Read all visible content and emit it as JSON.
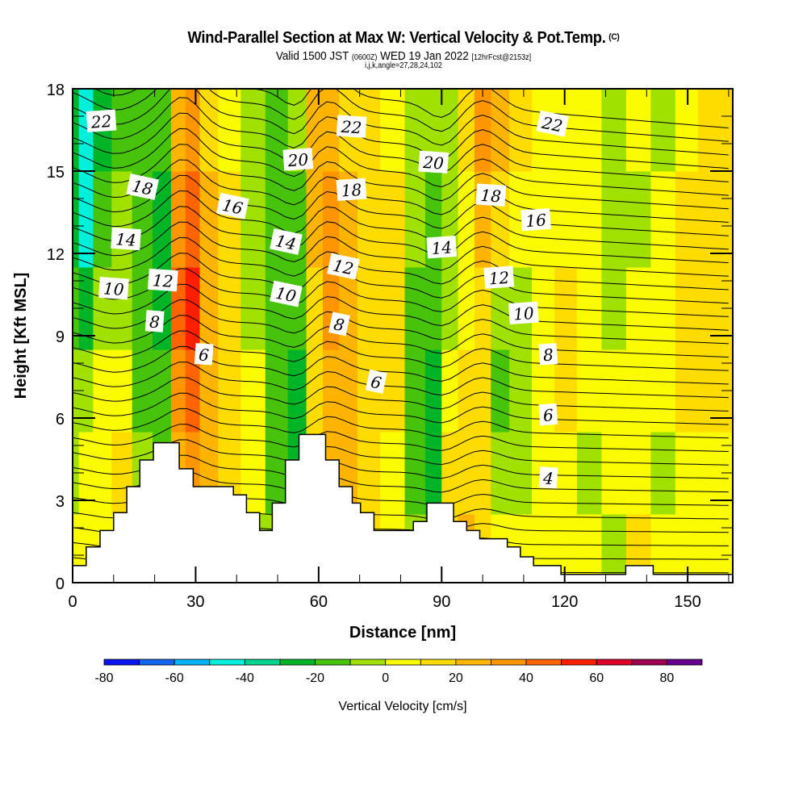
{
  "header": {
    "title": "Wind-Parallel Section at Max W: Vertical Velocity & Pot.Temp.",
    "copyright": "(C)",
    "valid_prefix": "Valid 1500 JST",
    "valid_utc": "(0600Z)",
    "valid_suffix": "WED 19 Jan 2022",
    "forecast": "[12hrFcst@2153z]",
    "indices": "i,j,k,angle=27,28,24,102"
  },
  "chart_data": {
    "type": "heatmap",
    "title": "Wind-Parallel Section at Max W: Vertical Velocity & Pot.Temp.",
    "xlabel": "Distance [nm]",
    "ylabel": "Height [Kft MSL]",
    "xlim": [
      0,
      161
    ],
    "ylim": [
      0,
      18
    ],
    "xticks": [
      "0",
      "30",
      "60",
      "90",
      "120",
      "150"
    ],
    "xtick_values": [
      0,
      30,
      60,
      90,
      120,
      150
    ],
    "yticks": [
      "0",
      "3",
      "6",
      "9",
      "12",
      "15",
      "18"
    ],
    "ytick_values": [
      0,
      3,
      6,
      9,
      12,
      15,
      18
    ],
    "colorbar": {
      "label": "Vertical Velocity [cm/s]",
      "bounds": [
        -80,
        -70,
        -60,
        -50,
        -40,
        -30,
        -20,
        -10,
        0,
        10,
        20,
        30,
        40,
        50,
        60,
        70,
        80,
        90
      ],
      "tick_labels": [
        "-80",
        "-60",
        "-40",
        "-20",
        "0",
        "20",
        "40",
        "60",
        "80"
      ],
      "tick_values": [
        -80,
        -60,
        -40,
        -20,
        0,
        20,
        40,
        60,
        80
      ],
      "colors": [
        "#0a14f0",
        "#1464f0",
        "#00b4f8",
        "#00f0dc",
        "#00d48c",
        "#00b428",
        "#46c30a",
        "#a0e100",
        "#fafa00",
        "#ffdc00",
        "#ffb400",
        "#ff9600",
        "#ff6400",
        "#ff1e00",
        "#dc0028",
        "#a00050",
        "#64008c"
      ]
    },
    "velocity_columns": [
      {
        "x": 0,
        "w": [
          0,
          -10,
          -10,
          -20,
          -30,
          -30
        ]
      },
      {
        "x": 3,
        "w": [
          0,
          0,
          -10,
          -30,
          -50,
          -50
        ]
      },
      {
        "x": 7,
        "w": [
          0,
          0,
          0,
          -10,
          -20,
          -30
        ]
      },
      {
        "x": 12,
        "w": [
          0,
          10,
          0,
          -10,
          -10,
          -20
        ]
      },
      {
        "x": 17,
        "w": [
          -10,
          -10,
          -20,
          -20,
          -20,
          -20
        ]
      },
      {
        "x": 22,
        "w": [
          -10,
          -20,
          -20,
          -30,
          -30,
          -20
        ]
      },
      {
        "x": 26,
        "w": [
          10,
          20,
          30,
          40,
          30,
          20
        ]
      },
      {
        "x": 29,
        "w": [
          20,
          30,
          40,
          50,
          40,
          30
        ]
      },
      {
        "x": 33,
        "w": [
          10,
          20,
          20,
          20,
          20,
          10
        ]
      },
      {
        "x": 38,
        "w": [
          0,
          10,
          10,
          10,
          10,
          0
        ]
      },
      {
        "x": 44,
        "w": [
          -10,
          0,
          0,
          -10,
          -10,
          -10
        ]
      },
      {
        "x": 50,
        "w": [
          -10,
          -20,
          -20,
          -20,
          -20,
          -20
        ]
      },
      {
        "x": 55,
        "w": [
          -20,
          -30,
          -30,
          -20,
          -20,
          -10
        ]
      },
      {
        "x": 59,
        "w": [
          0,
          10,
          10,
          10,
          20,
          20
        ]
      },
      {
        "x": 63,
        "w": [
          10,
          20,
          20,
          30,
          30,
          20
        ]
      },
      {
        "x": 67,
        "w": [
          20,
          20,
          20,
          20,
          20,
          10
        ]
      },
      {
        "x": 72,
        "w": [
          10,
          10,
          10,
          10,
          10,
          10
        ]
      },
      {
        "x": 78,
        "w": [
          0,
          0,
          10,
          10,
          10,
          0
        ]
      },
      {
        "x": 84,
        "w": [
          -10,
          -20,
          -20,
          -20,
          -10,
          -10
        ]
      },
      {
        "x": 88,
        "w": [
          -20,
          -30,
          -30,
          -20,
          -20,
          -10
        ]
      },
      {
        "x": 92,
        "w": [
          10,
          10,
          0,
          -10,
          -10,
          -10
        ]
      },
      {
        "x": 96,
        "w": [
          20,
          10,
          10,
          0,
          0,
          10
        ]
      },
      {
        "x": 100,
        "w": [
          10,
          10,
          10,
          10,
          20,
          30
        ]
      },
      {
        "x": 104,
        "w": [
          0,
          -10,
          -20,
          -10,
          10,
          20
        ]
      },
      {
        "x": 109,
        "w": [
          0,
          -10,
          -10,
          -10,
          0,
          10
        ]
      },
      {
        "x": 115,
        "w": [
          0,
          0,
          0,
          0,
          0,
          0
        ]
      },
      {
        "x": 120,
        "w": [
          0,
          0,
          10,
          10,
          0,
          0
        ]
      },
      {
        "x": 126,
        "w": [
          0,
          -10,
          0,
          0,
          0,
          0
        ]
      },
      {
        "x": 132,
        "w": [
          -10,
          0,
          0,
          -10,
          -10,
          -10
        ]
      },
      {
        "x": 138,
        "w": [
          10,
          0,
          0,
          0,
          -10,
          0
        ]
      },
      {
        "x": 144,
        "w": [
          0,
          -10,
          0,
          0,
          0,
          -10
        ]
      },
      {
        "x": 150,
        "w": [
          0,
          0,
          10,
          10,
          10,
          0
        ]
      },
      {
        "x": 155,
        "w": [
          0,
          0,
          10,
          10,
          10,
          10
        ]
      },
      {
        "x": 161,
        "w": [
          0,
          0,
          10,
          10,
          10,
          10
        ]
      }
    ],
    "velocity_levels_kft": [
      1,
      4,
      7,
      10,
      13,
      17
    ],
    "terrain_kft": [
      [
        0,
        0.62
      ],
      [
        3.3,
        1.3
      ],
      [
        6.7,
        1.9
      ],
      [
        10,
        2.55
      ],
      [
        13.2,
        3.5
      ],
      [
        16.4,
        4.47
      ],
      [
        19.7,
        5.1
      ],
      [
        26.0,
        4.15
      ],
      [
        29.4,
        3.5
      ],
      [
        39.2,
        3.2
      ],
      [
        42.4,
        2.55
      ],
      [
        45.6,
        1.9
      ],
      [
        48.7,
        2.9
      ],
      [
        51.9,
        4.47
      ],
      [
        55.2,
        5.4
      ],
      [
        61.7,
        4.47
      ],
      [
        65.0,
        3.5
      ],
      [
        68.2,
        2.9
      ],
      [
        70.2,
        2.55
      ],
      [
        73.5,
        1.9
      ],
      [
        83.1,
        2.23
      ],
      [
        86.4,
        2.9
      ],
      [
        92.9,
        2.23
      ],
      [
        96.1,
        1.9
      ],
      [
        99.3,
        1.6
      ],
      [
        106.0,
        1.3
      ],
      [
        109.2,
        0.94
      ],
      [
        112.4,
        0.62
      ],
      [
        119.1,
        0.3
      ],
      [
        134.9,
        0.62
      ],
      [
        141.6,
        0.3
      ],
      [
        161,
        0.3
      ]
    ],
    "theta_contour_labels": [
      {
        "text": "22",
        "x": 7,
        "y": 16.8
      },
      {
        "text": "22",
        "x": 68,
        "y": 16.6
      },
      {
        "text": "22",
        "x": 117,
        "y": 16.7
      },
      {
        "text": "20",
        "x": 55,
        "y": 15.4
      },
      {
        "text": "20",
        "x": 88,
        "y": 15.3
      },
      {
        "text": "18",
        "x": 17,
        "y": 14.4
      },
      {
        "text": "18",
        "x": 68,
        "y": 14.3
      },
      {
        "text": "18",
        "x": 102,
        "y": 14.1
      },
      {
        "text": "16",
        "x": 39,
        "y": 13.7
      },
      {
        "text": "16",
        "x": 113,
        "y": 13.2
      },
      {
        "text": "14",
        "x": 13,
        "y": 12.5
      },
      {
        "text": "14",
        "x": 52,
        "y": 12.4
      },
      {
        "text": "14",
        "x": 90,
        "y": 12.2
      },
      {
        "text": "12",
        "x": 22,
        "y": 11.0
      },
      {
        "text": "12",
        "x": 66,
        "y": 11.5
      },
      {
        "text": "12",
        "x": 104,
        "y": 11.1
      },
      {
        "text": "10",
        "x": 10,
        "y": 10.7
      },
      {
        "text": "10",
        "x": 52,
        "y": 10.5
      },
      {
        "text": "10",
        "x": 110,
        "y": 9.8
      },
      {
        "text": "8",
        "x": 20,
        "y": 9.5
      },
      {
        "text": "8",
        "x": 65,
        "y": 9.4
      },
      {
        "text": "8",
        "x": 116,
        "y": 8.3
      },
      {
        "text": "6",
        "x": 32,
        "y": 8.3
      },
      {
        "text": "6",
        "x": 74,
        "y": 7.3
      },
      {
        "text": "6",
        "x": 116,
        "y": 6.1
      },
      {
        "text": "4",
        "x": 116,
        "y": 3.8
      }
    ]
  }
}
